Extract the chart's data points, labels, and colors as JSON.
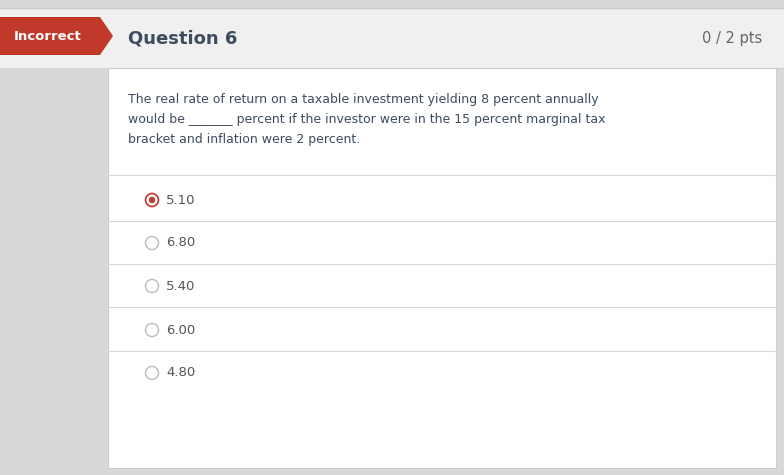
{
  "title": "Question 6",
  "score": "0 / 2 pts",
  "incorrect_label": "Incorrect",
  "question_text_line1": "The real rate of return on a taxable investment yielding 8 percent annually",
  "question_text_line2": "would be _______ percent if the investor were in the 15 percent marginal tax",
  "question_text_line3": "bracket and inflation were 2 percent.",
  "options": [
    "5.10",
    "6.80",
    "5.40",
    "6.00",
    "4.80"
  ],
  "selected_option": 0,
  "bg_header": "#f0f0f0",
  "bg_body": "#ffffff",
  "incorrect_bg": "#c0392b",
  "incorrect_text": "#ffffff",
  "title_color": "#3d4c5e",
  "score_color": "#666666",
  "question_text_color": "#3d4c5e",
  "option_text_color": "#555555",
  "divider_color": "#d8d8d8",
  "radio_selected_outer": "#c0392b",
  "radio_selected_inner": "#c0392b",
  "radio_unselected_color": "#bbbbbb",
  "outer_bg": "#d8d8d8",
  "top_border_color": "#cccccc",
  "body_border_color": "#cccccc"
}
